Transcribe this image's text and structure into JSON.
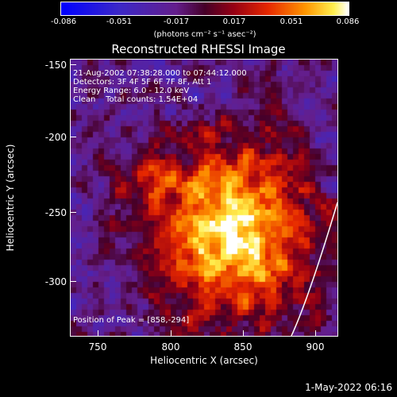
{
  "colorbar": {
    "ticks": [
      "-0.086",
      "-0.051",
      "-0.017",
      "0.017",
      "0.051",
      "0.086"
    ],
    "units": "(photons cm⁻² s⁻¹ asec⁻²)"
  },
  "title": "Reconstructed RHESSI Image",
  "info": {
    "line1": "21-Aug-2002 07:38:28.000 to 07:44:12.000",
    "line2": "Detectors: 3F 4F 5F 6F 7F 8F, Att 1",
    "line3": "Energy Range: 6.0 - 12.0 keV",
    "line4": "Clean    Total counts: 1.54E+04",
    "peak": "Position of Peak = [858,-294]"
  },
  "axes": {
    "xlabel": "Heliocentric X (arcsec)",
    "ylabel": "Heliocentric Y (arcsec)",
    "xticks": [
      "750",
      "800",
      "850",
      "900"
    ],
    "yticks": [
      "-150",
      "-200",
      "-250",
      "-300"
    ]
  },
  "footer": "1-May-2022 06:16",
  "colors": {
    "background": "#000000",
    "foreground": "#ffffff"
  }
}
